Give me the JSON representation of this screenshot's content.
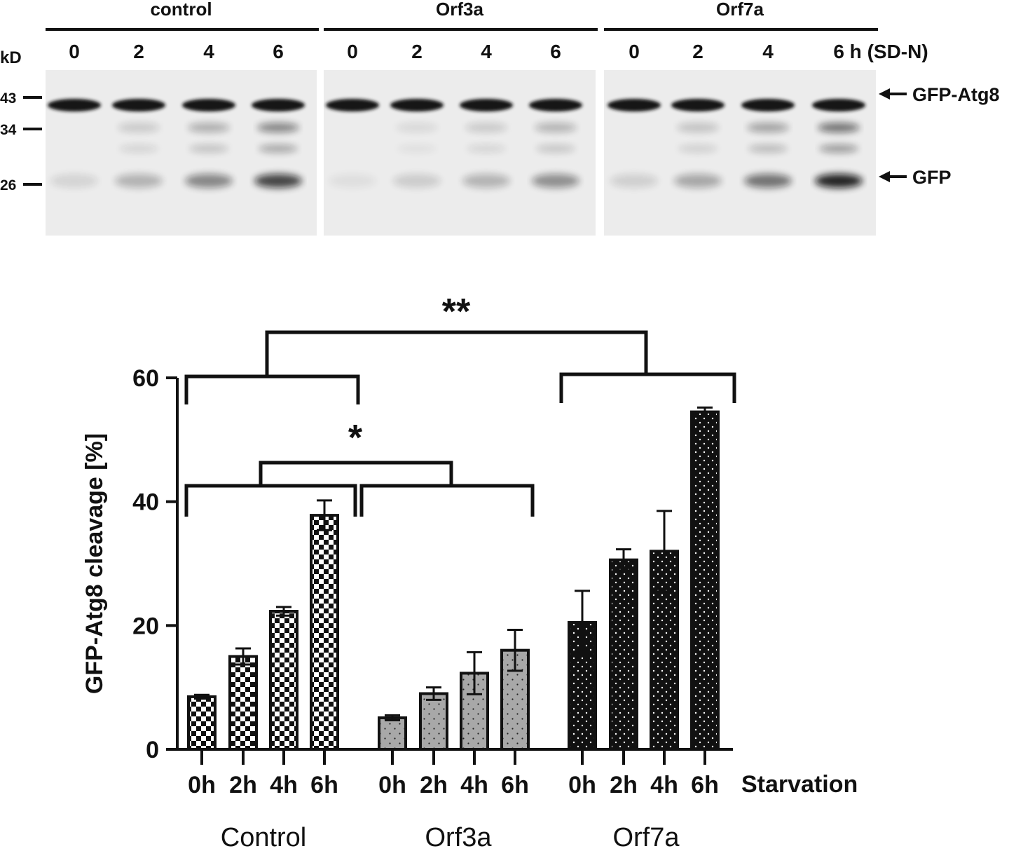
{
  "blot": {
    "groups": [
      {
        "name": "control",
        "lanes": [
          "0",
          "2",
          "4",
          "6"
        ]
      },
      {
        "name": "Orf3a",
        "lanes": [
          "0",
          "2",
          "4",
          "6"
        ]
      },
      {
        "name": "Orf7a",
        "lanes": [
          "0",
          "2",
          "4",
          "6 h (SD-N)"
        ]
      }
    ],
    "unit_label": "kD",
    "markers": [
      "43",
      "34",
      "26"
    ],
    "band_labels": [
      "GFP-Atg8",
      "GFP"
    ]
  },
  "chart_data": {
    "type": "bar",
    "ylabel": "GFP-Atg8 cleavage [%]",
    "ylim": [
      0,
      60
    ],
    "yticks": [
      "0",
      "20",
      "40",
      "60"
    ],
    "x_axis_title": "Starvation",
    "groups": [
      {
        "name": "Control",
        "categories": [
          "0h",
          "2h",
          "4h",
          "6h"
        ],
        "values": [
          8.5,
          15,
          22.3,
          37.8
        ],
        "errors": [
          0.3,
          1.3,
          0.7,
          2.4
        ],
        "pattern": "checker"
      },
      {
        "name": "Orf3a",
        "categories": [
          "0h",
          "2h",
          "4h",
          "6h"
        ],
        "values": [
          5.1,
          9.0,
          12.3,
          16.0
        ],
        "errors": [
          0.4,
          1.0,
          3.4,
          3.3
        ],
        "pattern": "gray-dots"
      },
      {
        "name": "Orf7a",
        "categories": [
          "0h",
          "2h",
          "4h",
          "6h"
        ],
        "values": [
          20.5,
          30.6,
          32.0,
          54.5
        ],
        "errors": [
          5.1,
          1.7,
          6.5,
          0.7
        ],
        "pattern": "black-dots"
      }
    ],
    "significance": [
      {
        "label": "**",
        "between": [
          "Control",
          "Orf7a"
        ]
      },
      {
        "label": "*",
        "between": [
          "Control",
          "Orf3a"
        ]
      }
    ]
  }
}
